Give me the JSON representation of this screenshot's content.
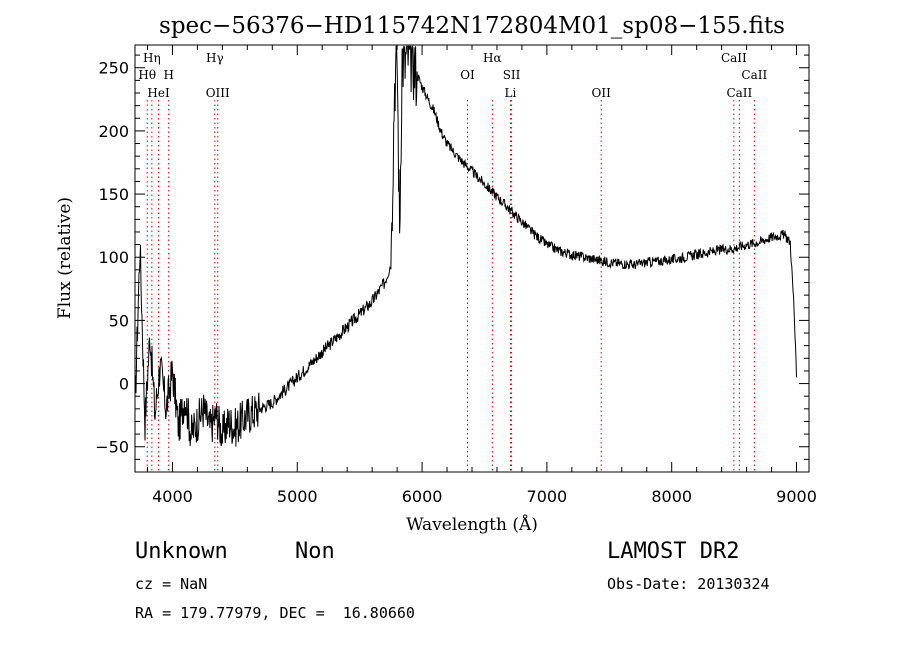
{
  "chart_data": {
    "type": "line",
    "title": "spec−56376−HD115742N172804M01_sp08−155.fits",
    "xlabel": "Wavelength (Å)",
    "ylabel": "Flux (relative)",
    "xlim": [
      3700,
      9100
    ],
    "ylim": [
      -70,
      268
    ],
    "xticks": [
      4000,
      5000,
      6000,
      7000,
      8000,
      9000
    ],
    "yticks": [
      -50,
      0,
      50,
      100,
      150,
      200,
      250
    ],
    "grid": false,
    "line_color": "#000000",
    "marker_color": "#dd0000",
    "series": [
      {
        "x": [
          3700,
          3740,
          3780,
          3820,
          3860,
          3900,
          3950,
          4000,
          4050,
          4100,
          4150,
          4200,
          4250,
          4300,
          4350,
          4400,
          4450,
          4500,
          4600,
          4700,
          4800,
          4900,
          5000,
          5100,
          5200,
          5300,
          5400,
          5500,
          5600,
          5700,
          5750,
          5780,
          5800,
          5820,
          5840,
          5860,
          5880,
          5900,
          5920,
          5940,
          5960,
          6000,
          6050,
          6100,
          6150,
          6200,
          6300,
          6400,
          6500,
          6600,
          6700,
          6800,
          6900,
          7000,
          7100,
          7200,
          7300,
          7400,
          7500,
          7600,
          7700,
          7800,
          7900,
          8000,
          8100,
          8200,
          8300,
          8400,
          8500,
          8600,
          8700,
          8800,
          8900,
          8950,
          8980,
          9000
        ],
        "y": [
          -20,
          110,
          -30,
          40,
          -25,
          15,
          -20,
          10,
          -35,
          -10,
          -40,
          -30,
          -20,
          -35,
          -25,
          -40,
          -30,
          -35,
          -25,
          -20,
          -15,
          -5,
          5,
          15,
          25,
          35,
          45,
          55,
          65,
          80,
          95,
          240,
          260,
          120,
          260,
          250,
          265,
          255,
          260,
          250,
          245,
          235,
          225,
          215,
          200,
          190,
          178,
          168,
          158,
          148,
          138,
          128,
          118,
          110,
          105,
          102,
          100,
          98,
          96,
          95,
          94,
          96,
          97,
          98,
          100,
          102,
          104,
          106,
          107,
          110,
          112,
          116,
          118,
          112,
          60,
          5
        ]
      }
    ],
    "line_markers": [
      {
        "label": "Hη",
        "x": 3835,
        "row": 1
      },
      {
        "label": "Hθ",
        "x": 3798,
        "row": 2
      },
      {
        "label": "H",
        "x": 3970,
        "row": 2
      },
      {
        "label": "HeI",
        "x": 3889,
        "row": 3
      },
      {
        "label": "Hγ",
        "x": 4340,
        "row": 1
      },
      {
        "label": "OIII",
        "x": 4363,
        "row": 3
      },
      {
        "label": "Hα",
        "x": 6563,
        "row": 1
      },
      {
        "label": "OI",
        "x": 6364,
        "row": 2
      },
      {
        "label": "SII",
        "x": 6717,
        "row": 2
      },
      {
        "label": "Li",
        "x": 6708,
        "row": 3
      },
      {
        "label": "OII",
        "x": 7435,
        "row": 3
      },
      {
        "label": "CaII",
        "x": 8498,
        "row": 1
      },
      {
        "label": "CaII",
        "x": 8662,
        "row": 2
      },
      {
        "label": "CaII",
        "x": 8542,
        "row": 3
      }
    ]
  },
  "info": {
    "object_class": "Unknown",
    "subclass": "Non",
    "survey": "LAMOST DR2",
    "cz": "cz = NaN",
    "obs_date": "Obs-Date: 20130324",
    "coords": "RA = 179.77979, DEC =  16.80660"
  }
}
